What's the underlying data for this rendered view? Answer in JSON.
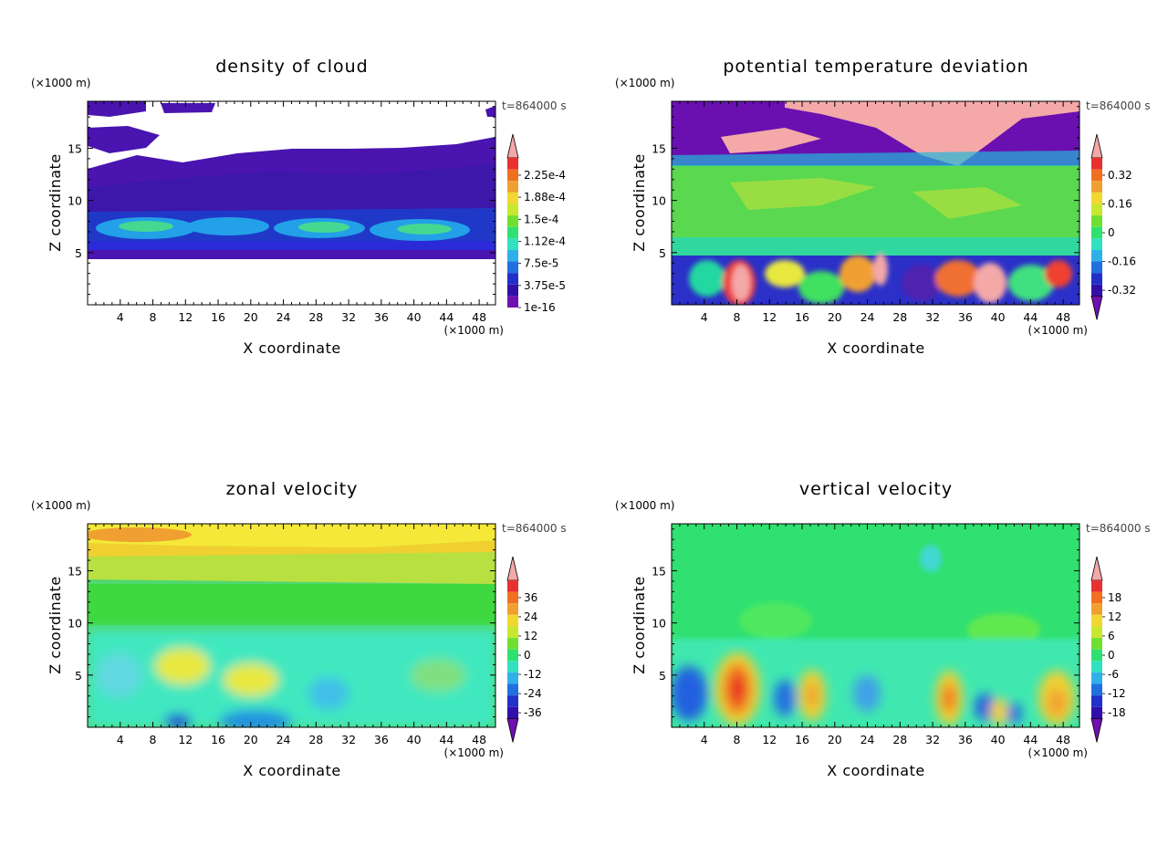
{
  "chart_data": [
    {
      "type": "heatmap",
      "title": "density of cloud",
      "xlabel": "X coordinate",
      "ylabel": "Z coordinate",
      "x_unit": "(×1000 m)",
      "y_unit": "(×1000 m)",
      "time_label": "t=864000 s",
      "xlim": [
        0,
        50
      ],
      "ylim": [
        0,
        19.5
      ],
      "x_ticks": [
        4,
        8,
        12,
        16,
        20,
        24,
        28,
        32,
        36,
        40,
        44,
        48
      ],
      "y_ticks": [
        5,
        10,
        15
      ],
      "colorbar_levels": [
        "2.25e-4",
        "1.88e-4",
        "1.5e-4",
        "1.12e-4",
        "7.5e-5",
        "3.75e-5",
        "1e-16"
      ],
      "colorbar_min_arrow": false
    },
    {
      "type": "heatmap",
      "title": "potential temperature deviation",
      "xlabel": "X coordinate",
      "ylabel": "Z coordinate",
      "x_unit": "(×1000 m)",
      "y_unit": "(×1000 m)",
      "time_label": "t=864000 s",
      "xlim": [
        0,
        50
      ],
      "ylim": [
        0,
        19.5
      ],
      "x_ticks": [
        4,
        8,
        12,
        16,
        20,
        24,
        28,
        32,
        36,
        40,
        44,
        48
      ],
      "y_ticks": [
        5,
        10,
        15
      ],
      "colorbar_levels": [
        "0.32",
        "0.16",
        "0",
        "-0.16",
        "-0.32"
      ],
      "colorbar_min_arrow": true
    },
    {
      "type": "heatmap",
      "title": "zonal velocity",
      "xlabel": "X coordinate",
      "ylabel": "Z coordinate",
      "x_unit": "(×1000 m)",
      "y_unit": "(×1000 m)",
      "time_label": "t=864000 s",
      "xlim": [
        0,
        50
      ],
      "ylim": [
        0,
        19.5
      ],
      "x_ticks": [
        4,
        8,
        12,
        16,
        20,
        24,
        28,
        32,
        36,
        40,
        44,
        48
      ],
      "y_ticks": [
        5,
        10,
        15
      ],
      "colorbar_levels": [
        "36",
        "24",
        "12",
        "0",
        "-12",
        "-24",
        "-36"
      ],
      "colorbar_min_arrow": true
    },
    {
      "type": "heatmap",
      "title": "vertical velocity",
      "xlabel": "X coordinate",
      "ylabel": "Z coordinate",
      "x_unit": "(×1000 m)",
      "y_unit": "(×1000 m)",
      "time_label": "t=864000 s",
      "xlim": [
        0,
        50
      ],
      "ylim": [
        0,
        19.5
      ],
      "x_ticks": [
        4,
        8,
        12,
        16,
        20,
        24,
        28,
        32,
        36,
        40,
        44,
        48
      ],
      "y_ticks": [
        5,
        10,
        15
      ],
      "colorbar_levels": [
        "18",
        "12",
        "6",
        "0",
        "-6",
        "-12",
        "-18"
      ],
      "colorbar_min_arrow": true
    }
  ]
}
